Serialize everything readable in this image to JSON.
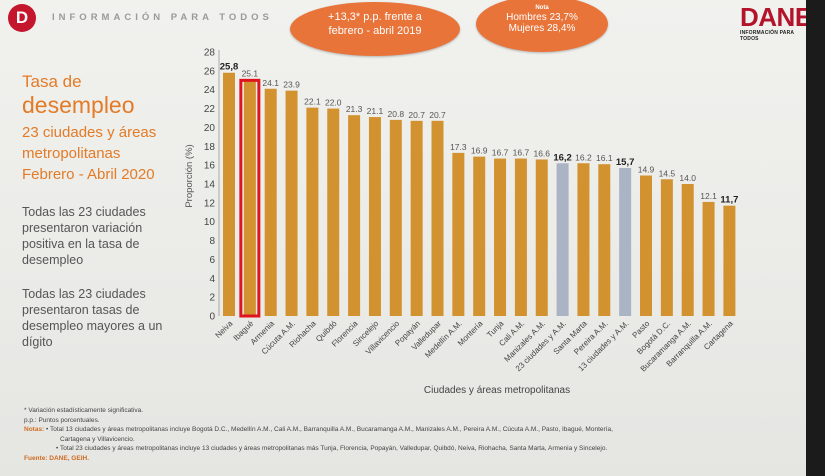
{
  "header": {
    "logo_letter": "D",
    "tagline": "INFORMACIÓN PARA TODOS",
    "brand": "DANE",
    "brand_sub": "INFORMACIÓN PARA TODOS"
  },
  "callouts": {
    "change": [
      "+13,3* p.p. frente a",
      "febrero - abril 2019"
    ],
    "nota": "Nota",
    "men": "Hombres 23,7%",
    "women": "Mujeres 28,4%"
  },
  "sidebar": {
    "title_line1": "Tasa de",
    "title_line2": "desempleo",
    "title_line3": "23 ciudades y áreas",
    "title_line4": "metropolitanas",
    "title_line5": "Febrero - Abril 2020",
    "para1": "Todas las 23 ciudades presentaron variación positiva en la tasa de desempleo",
    "para2": "Todas las 23 ciudades presentaron tasas de desempleo mayores a un dígito"
  },
  "chart_data": {
    "type": "bar",
    "xlabel": "Ciudades y áreas metropolitanas",
    "ylabel": "Proporción (%)",
    "ylim": [
      0,
      28
    ],
    "yticks": [
      0,
      2,
      4,
      6,
      8,
      10,
      12,
      14,
      16,
      18,
      20,
      22,
      24,
      26,
      28
    ],
    "categories": [
      "Neiva",
      "Ibagué",
      "Armenia",
      "Cúcuta A.M.",
      "Riohacha",
      "Quibdó",
      "Florencia",
      "Sincelejo",
      "Villavicencio",
      "Popayán",
      "Valledupar",
      "Medellín A.M.",
      "Montería",
      "Tunja",
      "Cali A.M.",
      "Manizales A.M.",
      "23 ciudades y A.M.",
      "Santa Marta",
      "Pereira A.M.",
      "13 ciudades y A.M.",
      "Pasto",
      "Bogotá D.C.",
      "Bucaramanga A.M.",
      "Barranquilla A.M.",
      "Cartagena"
    ],
    "values": [
      25.8,
      25.1,
      24.1,
      23.9,
      22.1,
      22.0,
      21.3,
      21.1,
      20.8,
      20.7,
      20.7,
      17.3,
      16.9,
      16.7,
      16.7,
      16.6,
      16.2,
      16.2,
      16.1,
      15.7,
      14.9,
      14.5,
      14.0,
      12.1,
      11.7
    ],
    "value_labels": [
      "25,8",
      "25.1",
      "24.1",
      "23.9",
      "22.1",
      "22.0",
      "21.3",
      "21.1",
      "20.8",
      "20.7",
      "20.7",
      "17.3",
      "16.9",
      "16.7",
      "16.7",
      "16.6",
      "16,2",
      "16.2",
      "16.1",
      "15,7",
      "14.9",
      "14.5",
      "14.0",
      "12.1",
      "11,7"
    ],
    "bold_labels": [
      "25,8",
      "16,2",
      "15,7",
      "11,7"
    ],
    "highlight_category": "Ibagué",
    "colors": {
      "bar": "#d1922f",
      "aggregate": "#aab4c4",
      "highlight": "#e0141e"
    },
    "grid": false,
    "legend": "none"
  },
  "notes": {
    "line1": "* Variación estadísticamente significativa.",
    "line2": "p.p.: Puntos porcentuales.",
    "label": "Notas:",
    "line3": "• Total 13 ciudades y áreas metropolitanas incluye Bogotá D.C., Medellín A.M., Cali A.M., Barranquilla A.M., Bucaramanga A.M., Manizales A.M., Pereira A.M., Cúcuta A.M., Pasto, Ibagué, Montería,",
    "line4": "Cartagena y Villavicencio.",
    "line5": "• Total 23 ciudades y áreas metropolitanas incluye 13 ciudades y áreas metropolitanas más Tunja, Florencia, Popayán, Valledupar, Quibdó, Neiva, Riohacha, Santa Marta, Armenia y Sincelejo.",
    "source": "Fuente: DANE, GEIH."
  }
}
